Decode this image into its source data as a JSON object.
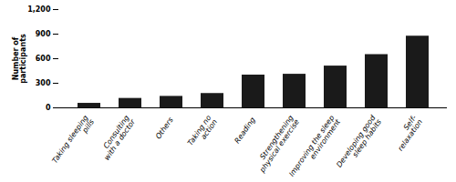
{
  "chart_data": {
    "type": "bar",
    "categories": [
      "Taking sleeping\npills",
      "Consulting\nwith a doctor",
      "Others",
      "Taking no\naction",
      "Reading",
      "Strengthening\nphysical exercise",
      "Improving the sleep\nenvironment",
      "Developing good\nsleep habits",
      "Self-\nrelaxation"
    ],
    "values": [
      55,
      115,
      140,
      175,
      400,
      410,
      510,
      650,
      875
    ],
    "color": "#1a1a1a",
    "ylabel": "Number of\nparticipants",
    "ylim": [
      0,
      1200
    ],
    "yticks": [
      0,
      300,
      600,
      900,
      {
        "value": 1200,
        "label": "1,200"
      }
    ]
  }
}
